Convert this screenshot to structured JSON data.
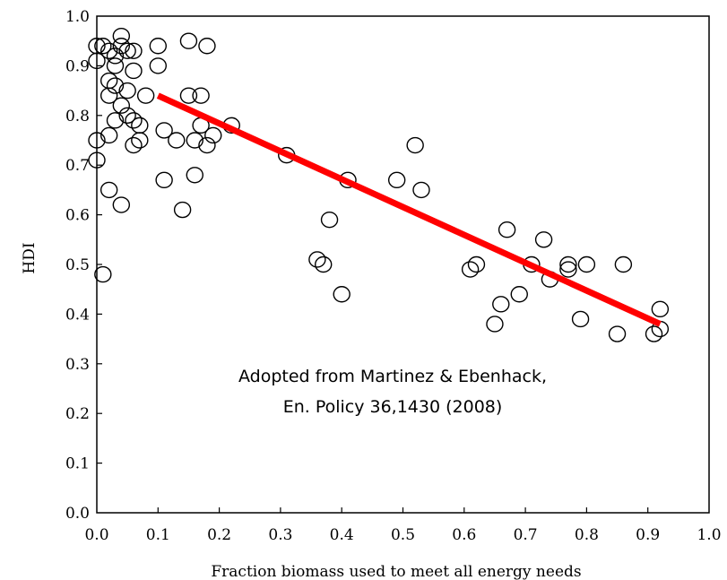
{
  "chart_data": {
    "type": "scatter",
    "title": "",
    "xlabel": "Fraction biomass used to meet all energy needs",
    "ylabel": "HDI",
    "xlim": [
      0.0,
      1.0
    ],
    "ylim": [
      0.0,
      1.0
    ],
    "x_tick_labels": [
      "0.0",
      "0.1",
      "0.2",
      "0.3",
      "0.4",
      "0.5",
      "0.6",
      "0.7",
      "0.8",
      "0.9",
      "1.0"
    ],
    "y_tick_labels": [
      "0.0",
      "0.1",
      "0.2",
      "0.3",
      "0.4",
      "0.5",
      "0.6",
      "0.7",
      "0.8",
      "0.9",
      "1.0"
    ],
    "grid": false,
    "legend": "none",
    "marker_color": "#000000",
    "trend_color": "#ff0000",
    "series": [
      {
        "points": [
          [
            0.0,
            0.94
          ],
          [
            0.0,
            0.91
          ],
          [
            0.0,
            0.75
          ],
          [
            0.0,
            0.71
          ],
          [
            0.01,
            0.48
          ],
          [
            0.01,
            0.94
          ],
          [
            0.02,
            0.93
          ],
          [
            0.02,
            0.87
          ],
          [
            0.02,
            0.84
          ],
          [
            0.02,
            0.76
          ],
          [
            0.02,
            0.65
          ],
          [
            0.03,
            0.92
          ],
          [
            0.03,
            0.9
          ],
          [
            0.03,
            0.86
          ],
          [
            0.03,
            0.79
          ],
          [
            0.04,
            0.96
          ],
          [
            0.04,
            0.94
          ],
          [
            0.04,
            0.82
          ],
          [
            0.04,
            0.62
          ],
          [
            0.05,
            0.93
          ],
          [
            0.05,
            0.85
          ],
          [
            0.05,
            0.8
          ],
          [
            0.06,
            0.93
          ],
          [
            0.06,
            0.89
          ],
          [
            0.06,
            0.79
          ],
          [
            0.06,
            0.74
          ],
          [
            0.07,
            0.78
          ],
          [
            0.07,
            0.75
          ],
          [
            0.08,
            0.84
          ],
          [
            0.1,
            0.94
          ],
          [
            0.1,
            0.9
          ],
          [
            0.11,
            0.67
          ],
          [
            0.11,
            0.77
          ],
          [
            0.13,
            0.75
          ],
          [
            0.14,
            0.61
          ],
          [
            0.15,
            0.95
          ],
          [
            0.15,
            0.84
          ],
          [
            0.16,
            0.75
          ],
          [
            0.16,
            0.68
          ],
          [
            0.17,
            0.84
          ],
          [
            0.17,
            0.78
          ],
          [
            0.18,
            0.94
          ],
          [
            0.18,
            0.74
          ],
          [
            0.19,
            0.76
          ],
          [
            0.22,
            0.78
          ],
          [
            0.31,
            0.72
          ],
          [
            0.36,
            0.51
          ],
          [
            0.37,
            0.5
          ],
          [
            0.38,
            0.59
          ],
          [
            0.4,
            0.44
          ],
          [
            0.41,
            0.67
          ],
          [
            0.49,
            0.67
          ],
          [
            0.52,
            0.74
          ],
          [
            0.53,
            0.65
          ],
          [
            0.61,
            0.49
          ],
          [
            0.62,
            0.5
          ],
          [
            0.65,
            0.38
          ],
          [
            0.66,
            0.42
          ],
          [
            0.67,
            0.57
          ],
          [
            0.69,
            0.44
          ],
          [
            0.71,
            0.5
          ],
          [
            0.73,
            0.55
          ],
          [
            0.74,
            0.47
          ],
          [
            0.77,
            0.5
          ],
          [
            0.77,
            0.49
          ],
          [
            0.79,
            0.39
          ],
          [
            0.8,
            0.5
          ],
          [
            0.85,
            0.36
          ],
          [
            0.86,
            0.5
          ],
          [
            0.91,
            0.36
          ],
          [
            0.92,
            0.41
          ],
          [
            0.92,
            0.37
          ]
        ]
      }
    ],
    "trend_line": {
      "x": [
        0.1,
        0.92
      ],
      "y": [
        0.84,
        0.38
      ]
    },
    "annotation": {
      "line1": "Adopted from Martinez & Ebenhack,",
      "line2": "En. Policy 36,1430 (2008)"
    }
  }
}
